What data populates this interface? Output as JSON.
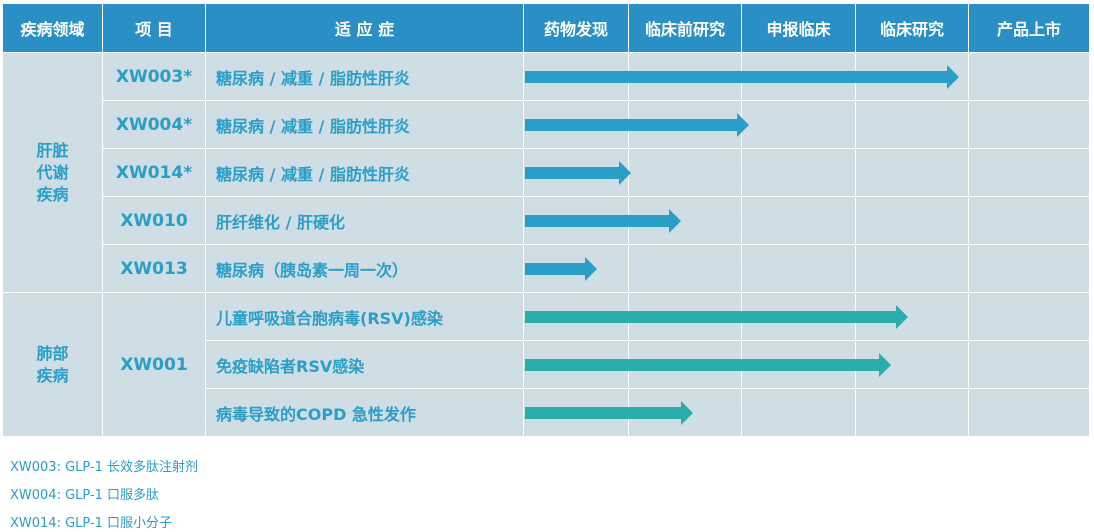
{
  "header": {
    "area": "疾病领域",
    "project": "项 目",
    "indication": "适 应 症",
    "stages": [
      "药物发现",
      "临床前研究",
      "申报临床",
      "临床研究",
      "产品上市"
    ]
  },
  "areas": {
    "liver": "肝脏\n代谢\n疾病",
    "lung": "肺部\n疾病"
  },
  "rows": [
    {
      "code": "XW003*",
      "indication": "糖尿病 / 减重 / 脂肪性肝炎",
      "progress": 0.77
    },
    {
      "code": "XW004*",
      "indication": "糖尿病 / 减重 / 脂肪性肝炎",
      "progress": 0.4
    },
    {
      "code": "XW014*",
      "indication": "糖尿病 / 减重 / 脂肪性肝炎",
      "progress": 0.19
    },
    {
      "code": "XW010",
      "indication": "肝纤维化 / 肝硬化",
      "progress": 0.28
    },
    {
      "code": "XW013",
      "indication": "糖尿病（胰岛素一周一次）",
      "progress": 0.13
    },
    {
      "code": "XW001",
      "indication": "儿童呼吸道合胞病毒(RSV)感染",
      "progress": 0.68
    },
    {
      "code": "XW001",
      "indication": "免疫缺陷者RSV感染",
      "progress": 0.65
    },
    {
      "code": "XW001",
      "indication": "病毒导致的COPD 急性发作",
      "progress": 0.3
    }
  ],
  "footnotes": [
    "XW003: GLP-1 长效多肽注射剂",
    "XW004: GLP-1 口服多肽",
    "XW014: GLP-1 口服小分子"
  ],
  "colors": {
    "header_bg": "#2a8fc4",
    "cell_bg": "#cfdde5",
    "liver_bar": "#2a9ec6",
    "lung_bar": "#2aaeaa",
    "text": "#2a9ec6"
  }
}
